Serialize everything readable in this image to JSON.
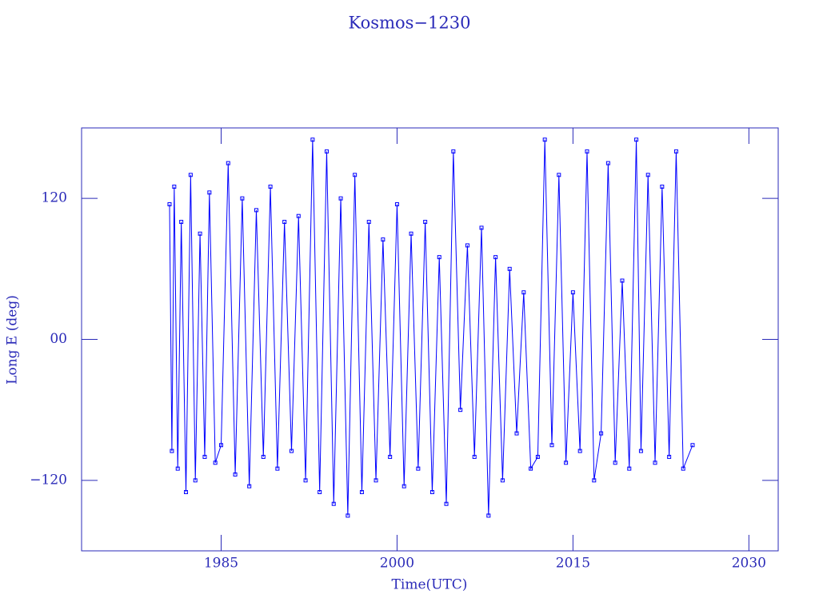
{
  "chart_data": {
    "type": "line",
    "title": "Kosmos−1230",
    "x_label": "Time(UTC)",
    "y_label": "Long E (deg)",
    "xlim": [
      1973.1,
      2032.5
    ],
    "xticks": [
      1985,
      2000,
      2015,
      2030
    ],
    "ylim": [
      -180,
      180
    ],
    "yticks": [
      {
        "value": -120,
        "label": "−120"
      },
      {
        "value": 0,
        "label": "00"
      },
      120
    ],
    "markers": true,
    "series": [
      {
        "color": "#0000ff",
        "x": [
          1980.6,
          1980.8,
          1981.0,
          1981.3,
          1981.6,
          1982.0,
          1982.4,
          1982.8,
          1983.2,
          1983.6,
          1984.0,
          1984.5,
          1985.0,
          1985.6,
          1986.2,
          1986.8,
          1987.4,
          1988.0,
          1988.6,
          1989.2,
          1989.8,
          1990.4,
          1991.0,
          1991.6,
          1992.2,
          1992.8,
          1993.4,
          1994.0,
          1994.6,
          1995.2,
          1995.8,
          1996.4,
          1997.0,
          1997.6,
          1998.2,
          1998.8,
          1999.4,
          2000.0,
          2000.6,
          2001.2,
          2001.8,
          2002.4,
          2003.0,
          2003.6,
          2004.2,
          2004.8,
          2005.4,
          2006.0,
          2006.6,
          2007.2,
          2007.8,
          2008.4,
          2009.0,
          2009.6,
          2010.2,
          2010.8,
          2011.4,
          2012.0,
          2012.6,
          2013.2,
          2013.8,
          2014.4,
          2015.0,
          2015.6,
          2016.2,
          2016.8,
          2017.4,
          2018.0,
          2018.6,
          2019.2,
          2019.8,
          2020.4,
          2020.8,
          2021.4,
          2022.0,
          2022.6,
          2023.2,
          2023.8,
          2024.4,
          2025.2
        ],
        "values": [
          115,
          -95,
          130,
          -110,
          100,
          -130,
          140,
          -120,
          90,
          -100,
          125,
          -105,
          -90,
          150,
          -115,
          120,
          -125,
          110,
          -100,
          130,
          -110,
          100,
          -95,
          105,
          -120,
          170,
          -130,
          160,
          -140,
          120,
          -150,
          140,
          -130,
          100,
          -120,
          85,
          -100,
          115,
          -125,
          90,
          -110,
          100,
          -130,
          70,
          -140,
          160,
          -60,
          80,
          -100,
          95,
          -150,
          70,
          -120,
          60,
          -80,
          40,
          -110,
          -100,
          170,
          -90,
          140,
          -105,
          40,
          -95,
          160,
          -120,
          -80,
          150,
          -105,
          50,
          -110,
          170,
          -95,
          140,
          -105,
          130,
          -100,
          160,
          -110,
          -90
        ]
      }
    ]
  }
}
